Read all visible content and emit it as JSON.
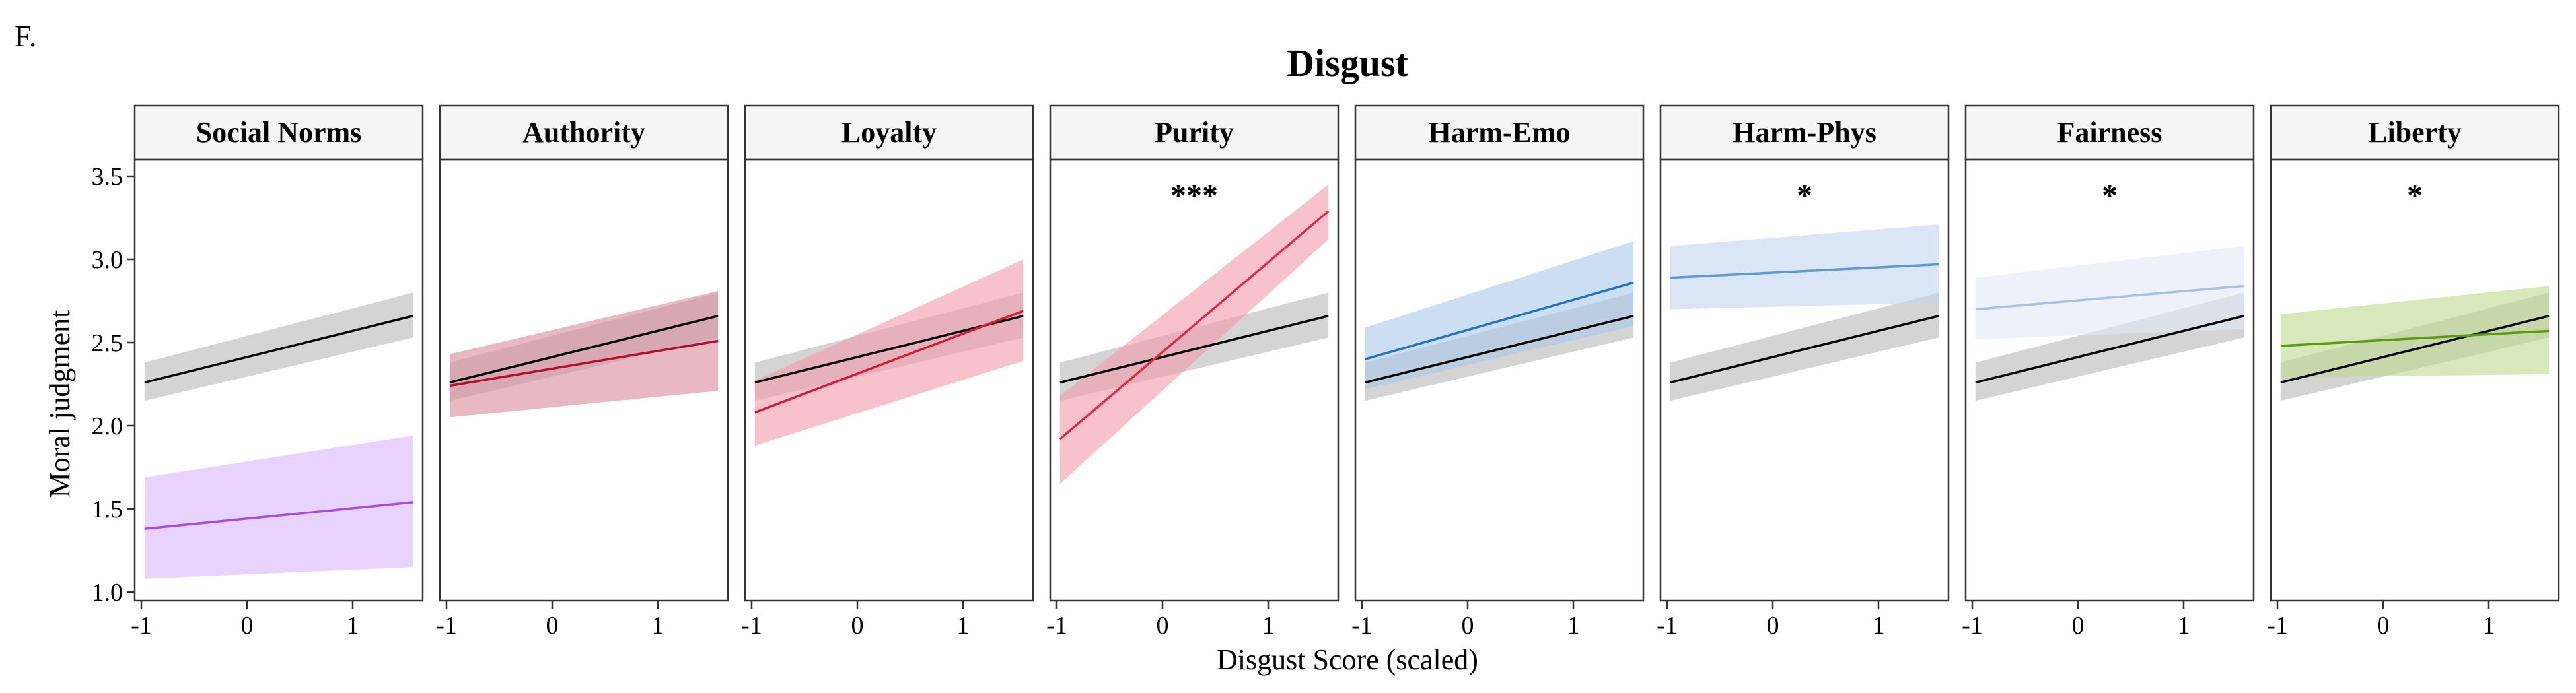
{
  "figure": {
    "panel_letter": "F.",
    "title": "Disgust",
    "xlabel": "Disgust Score (scaled)",
    "ylabel": "Moral judgment"
  },
  "chart_data": {
    "type": "line",
    "title": "Disgust",
    "xlabel": "Disgust Score (scaled)",
    "ylabel": "Moral judgment",
    "xlim": [
      -1,
      1.6
    ],
    "ylim": [
      1.0,
      3.5
    ],
    "x_ticks": [
      -1,
      0,
      1
    ],
    "x_tick_labels": [
      "-1",
      "0",
      "1"
    ],
    "y_ticks": [
      1.0,
      1.5,
      2.0,
      2.5,
      3.0,
      3.5
    ],
    "y_tick_labels": [
      "1.0",
      "1.5",
      "2.0",
      "2.5",
      "3.0",
      "3.5"
    ],
    "grid": false,
    "reference": {
      "color": "#000000",
      "band_color": "#bdbdbd",
      "x": [
        -0.97,
        1.57
      ],
      "y": [
        2.26,
        2.66
      ],
      "lower": [
        2.15,
        2.53
      ],
      "upper": [
        2.38,
        2.8
      ]
    },
    "panels": [
      {
        "label": "Social Norms",
        "sig": "",
        "color": "#a64be8",
        "band_color": "#d8b4fe",
        "x": [
          -0.97,
          1.57
        ],
        "y": [
          1.38,
          1.54
        ],
        "lower": [
          1.08,
          1.15
        ],
        "upper": [
          1.69,
          1.94
        ]
      },
      {
        "label": "Authority",
        "sig": "",
        "color": "#b0102a",
        "band_color": "#d9899b",
        "x": [
          -0.97,
          1.57
        ],
        "y": [
          2.24,
          2.51
        ],
        "lower": [
          2.05,
          2.21
        ],
        "upper": [
          2.43,
          2.81
        ]
      },
      {
        "label": "Loyalty",
        "sig": "",
        "color": "#d41c3a",
        "band_color": "#f29aa8",
        "x": [
          -0.97,
          1.57
        ],
        "y": [
          2.08,
          2.69
        ],
        "lower": [
          1.88,
          2.39
        ],
        "upper": [
          2.27,
          3.0
        ]
      },
      {
        "label": "Purity",
        "sig": "***",
        "color": "#e02a4a",
        "band_color": "#f29aa8",
        "x": [
          -0.97,
          1.57
        ],
        "y": [
          1.92,
          3.29
        ],
        "lower": [
          1.65,
          3.12
        ],
        "upper": [
          2.18,
          3.45
        ]
      },
      {
        "label": "Harm-Emo",
        "sig": "",
        "color": "#2574c4",
        "band_color": "#a9c8ea",
        "x": [
          -0.97,
          1.57
        ],
        "y": [
          2.4,
          2.86
        ],
        "lower": [
          2.22,
          2.6
        ],
        "upper": [
          2.59,
          3.11
        ]
      },
      {
        "label": "Harm-Phys",
        "sig": "*",
        "color": "#5e96d6",
        "band_color": "#c2d6ee",
        "x": [
          -0.97,
          1.57
        ],
        "y": [
          2.89,
          2.97
        ],
        "lower": [
          2.7,
          2.74
        ],
        "upper": [
          3.08,
          3.21
        ]
      },
      {
        "label": "Fairness",
        "sig": "*",
        "color": "#a9bfe6",
        "band_color": "#dfe7f7",
        "x": [
          -0.97,
          1.57
        ],
        "y": [
          2.7,
          2.84
        ],
        "lower": [
          2.52,
          2.58
        ],
        "upper": [
          2.89,
          3.08
        ]
      },
      {
        "label": "Liberty",
        "sig": "*",
        "color": "#5a9a0c",
        "band_color": "#bcd88e",
        "x": [
          -0.97,
          1.57
        ],
        "y": [
          2.48,
          2.57
        ],
        "lower": [
          2.29,
          2.31
        ],
        "upper": [
          2.67,
          2.84
        ]
      }
    ]
  }
}
